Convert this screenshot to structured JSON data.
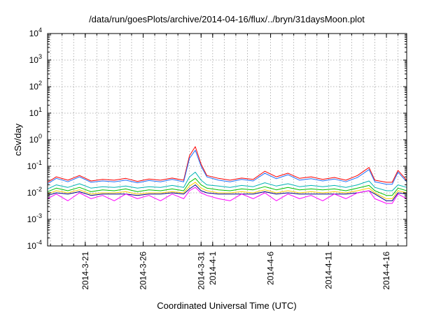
{
  "chart_data": {
    "type": "line",
    "title": "/data/run/goesPlots/archive/2014-04-16/flux/../bryn/31daysMoon.plot",
    "xlabel": "Coordinated Universal Time (UTC)",
    "ylabel": "cSv/day",
    "yscale": "log",
    "ylim": [
      0.0001,
      10000
    ],
    "xlim": [
      "2014-03-17T18:00",
      "2014-04-17T18:00"
    ],
    "grid": true,
    "y_ticks": [
      {
        "value": 0.0001,
        "base": "10",
        "exp": "-4"
      },
      {
        "value": 0.001,
        "base": "10",
        "exp": "-3"
      },
      {
        "value": 0.01,
        "base": "10",
        "exp": "-2"
      },
      {
        "value": 0.1,
        "base": "10",
        "exp": "-1"
      },
      {
        "value": 1,
        "base": "10",
        "exp": "0"
      },
      {
        "value": 10,
        "base": "10",
        "exp": "1"
      },
      {
        "value": 100,
        "base": "10",
        "exp": "2"
      },
      {
        "value": 1000,
        "base": "10",
        "exp": "3"
      },
      {
        "value": 10000,
        "base": "10",
        "exp": "4"
      }
    ],
    "x_ticks": [
      {
        "date": "2014-03-21",
        "label": "2014-3-21"
      },
      {
        "date": "2014-03-26",
        "label": "2014-3-26"
      },
      {
        "date": "2014-03-31",
        "label": "2014-3-31"
      },
      {
        "date": "2014-04-01",
        "label": "2014-4-1"
      },
      {
        "date": "2014-04-06",
        "label": "2014-4-6"
      },
      {
        "date": "2014-04-11",
        "label": "2014-4-11"
      },
      {
        "date": "2014-04-16",
        "label": "2014-4-16"
      }
    ],
    "x": [
      "2014-03-17T18:00",
      "2014-03-18T12:00",
      "2014-03-19T12:00",
      "2014-03-20T12:00",
      "2014-03-21T12:00",
      "2014-03-22T12:00",
      "2014-03-23T12:00",
      "2014-03-24T12:00",
      "2014-03-25T12:00",
      "2014-03-26T12:00",
      "2014-03-27T12:00",
      "2014-03-28T12:00",
      "2014-03-29T12:00",
      "2014-03-30T00:00",
      "2014-03-30T12:00",
      "2014-03-31T00:00",
      "2014-03-31T12:00",
      "2014-04-01T12:00",
      "2014-04-02T12:00",
      "2014-04-03T12:00",
      "2014-04-04T12:00",
      "2014-04-05T12:00",
      "2014-04-06T12:00",
      "2014-04-07T12:00",
      "2014-04-08T12:00",
      "2014-04-09T12:00",
      "2014-04-10T12:00",
      "2014-04-11T12:00",
      "2014-04-12T12:00",
      "2014-04-13T12:00",
      "2014-04-14T12:00",
      "2014-04-15T00:00",
      "2014-04-16T00:00",
      "2014-04-16T12:00",
      "2014-04-17T00:00",
      "2014-04-17T18:00"
    ],
    "series": [
      {
        "color": "#ff0000",
        "values": [
          0.025,
          0.04,
          0.03,
          0.045,
          0.028,
          0.032,
          0.03,
          0.035,
          0.027,
          0.033,
          0.03,
          0.036,
          0.03,
          0.25,
          0.55,
          0.12,
          0.045,
          0.035,
          0.03,
          0.036,
          0.032,
          0.065,
          0.04,
          0.055,
          0.035,
          0.04,
          0.032,
          0.038,
          0.03,
          0.045,
          0.09,
          0.03,
          0.025,
          0.025,
          0.07,
          0.03
        ]
      },
      {
        "color": "#1f6fff",
        "values": [
          0.022,
          0.035,
          0.026,
          0.04,
          0.025,
          0.028,
          0.026,
          0.03,
          0.024,
          0.029,
          0.026,
          0.032,
          0.026,
          0.2,
          0.4,
          0.1,
          0.04,
          0.03,
          0.026,
          0.032,
          0.028,
          0.055,
          0.034,
          0.048,
          0.03,
          0.034,
          0.028,
          0.033,
          0.026,
          0.038,
          0.075,
          0.026,
          0.021,
          0.021,
          0.06,
          0.026
        ]
      },
      {
        "color": "#00b3b3",
        "values": [
          0.014,
          0.02,
          0.016,
          0.022,
          0.015,
          0.017,
          0.016,
          0.018,
          0.015,
          0.017,
          0.016,
          0.019,
          0.016,
          0.04,
          0.06,
          0.03,
          0.02,
          0.018,
          0.016,
          0.019,
          0.017,
          0.024,
          0.018,
          0.022,
          0.017,
          0.019,
          0.017,
          0.019,
          0.016,
          0.02,
          0.028,
          0.016,
          0.012,
          0.012,
          0.02,
          0.016
        ]
      },
      {
        "color": "#00c000",
        "values": [
          0.011,
          0.015,
          0.012,
          0.016,
          0.011,
          0.013,
          0.012,
          0.014,
          0.011,
          0.013,
          0.012,
          0.014,
          0.012,
          0.025,
          0.035,
          0.02,
          0.015,
          0.013,
          0.012,
          0.014,
          0.013,
          0.017,
          0.013,
          0.016,
          0.013,
          0.014,
          0.013,
          0.014,
          0.012,
          0.015,
          0.019,
          0.012,
          0.008,
          0.008,
          0.015,
          0.012
        ]
      },
      {
        "color": "#ffcc00",
        "values": [
          0.009,
          0.012,
          0.01,
          0.013,
          0.009,
          0.01,
          0.01,
          0.011,
          0.009,
          0.01,
          0.01,
          0.011,
          0.01,
          0.018,
          0.025,
          0.015,
          0.012,
          0.01,
          0.01,
          0.011,
          0.01,
          0.013,
          0.01,
          0.012,
          0.01,
          0.011,
          0.01,
          0.011,
          0.01,
          0.012,
          0.015,
          0.01,
          0.006,
          0.006,
          0.012,
          0.01
        ]
      },
      {
        "color": "#000080",
        "values": [
          0.008,
          0.01,
          0.009,
          0.011,
          0.008,
          0.009,
          0.009,
          0.009,
          0.008,
          0.009,
          0.009,
          0.01,
          0.009,
          0.014,
          0.02,
          0.012,
          0.01,
          0.009,
          0.009,
          0.009,
          0.009,
          0.011,
          0.009,
          0.01,
          0.009,
          0.009,
          0.009,
          0.009,
          0.009,
          0.01,
          0.012,
          0.009,
          0.005,
          0.005,
          0.01,
          0.009
        ]
      },
      {
        "color": "#ff00ff",
        "values": [
          0.006,
          0.009,
          0.005,
          0.01,
          0.006,
          0.008,
          0.005,
          0.009,
          0.006,
          0.008,
          0.005,
          0.009,
          0.006,
          0.012,
          0.016,
          0.01,
          0.008,
          0.006,
          0.005,
          0.009,
          0.006,
          0.01,
          0.005,
          0.009,
          0.006,
          0.008,
          0.005,
          0.009,
          0.006,
          0.01,
          0.012,
          0.006,
          0.004,
          0.004,
          0.009,
          0.006
        ]
      }
    ]
  }
}
